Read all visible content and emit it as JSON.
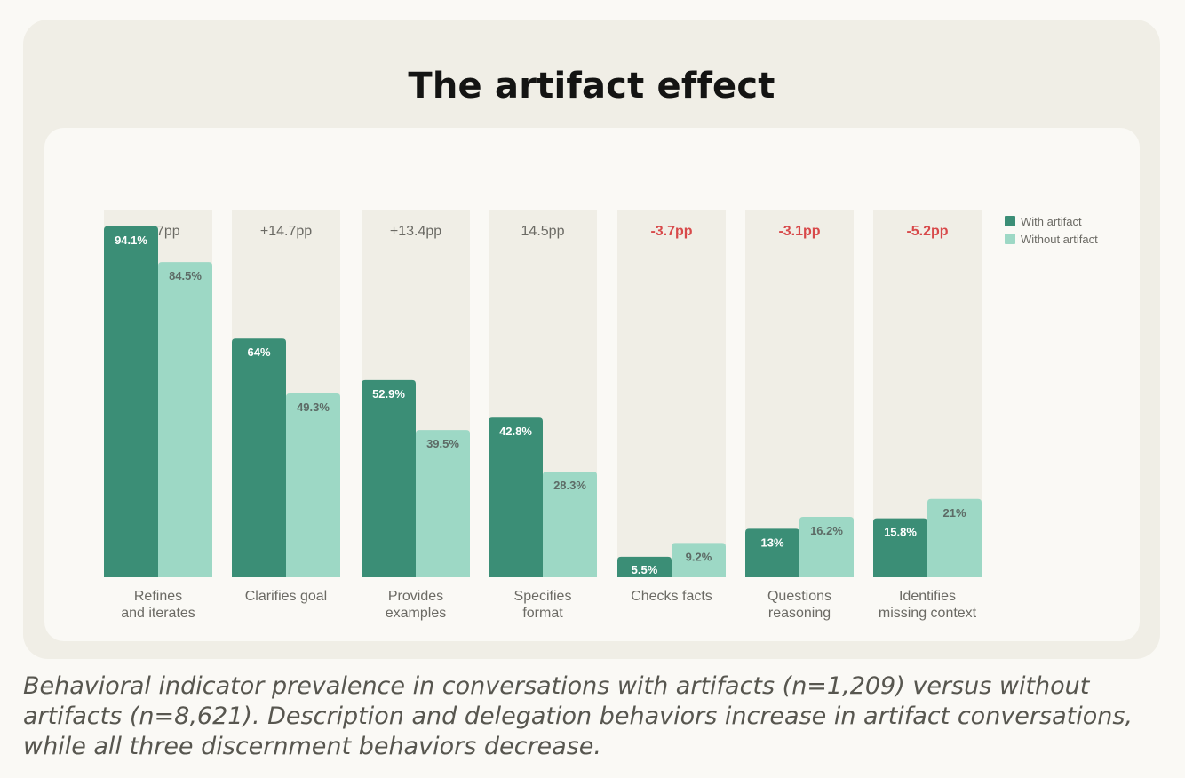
{
  "title": "The artifact effect",
  "caption": "Behavioral indicator prevalence in conversations with artifacts (n=1,209) versus without artifacts (n=8,621). Description and delegation behaviors increase in artifact conversations, while all three discernment behaviors decrease.",
  "colors": {
    "with_artifact": "#3b8e76",
    "without_artifact": "#9dd8c5",
    "column_background": "#f0eee6",
    "positive_diff": "#6b6a64",
    "negative_diff": "#d8494a"
  },
  "chart_data": {
    "type": "bar",
    "title": "The artifact effect",
    "ylim": [
      0,
      100
    ],
    "grid": false,
    "legend_position": "top-right",
    "categories": [
      [
        "Refines",
        "and iterates"
      ],
      [
        "Clarifies goal"
      ],
      [
        "Provides",
        "examples"
      ],
      [
        "Specifies",
        "format"
      ],
      [
        "Checks facts"
      ],
      [
        "Questions",
        "reasoning"
      ],
      [
        "Identifies",
        "missing context"
      ]
    ],
    "differences": [
      "+9.7pp",
      "+14.7pp",
      "+13.4pp",
      "14.5pp",
      "-3.7pp",
      "-3.1pp",
      "-5.2pp"
    ],
    "difference_sign": [
      "positive",
      "positive",
      "positive",
      "positive",
      "negative",
      "negative",
      "negative"
    ],
    "series": [
      {
        "name": "With artifact",
        "values": [
          94.1,
          64,
          52.9,
          42.8,
          5.5,
          13,
          15.8
        ],
        "labels": [
          "94.1%",
          "64%",
          "52.9%",
          "42.8%",
          "5.5%",
          "13%",
          "15.8%"
        ]
      },
      {
        "name": "Without artifact",
        "values": [
          84.5,
          49.3,
          39.5,
          28.3,
          9.2,
          16.2,
          21
        ],
        "labels": [
          "84.5%",
          "49.3%",
          "39.5%",
          "28.3%",
          "9.2%",
          "16.2%",
          "21%"
        ]
      }
    ]
  }
}
